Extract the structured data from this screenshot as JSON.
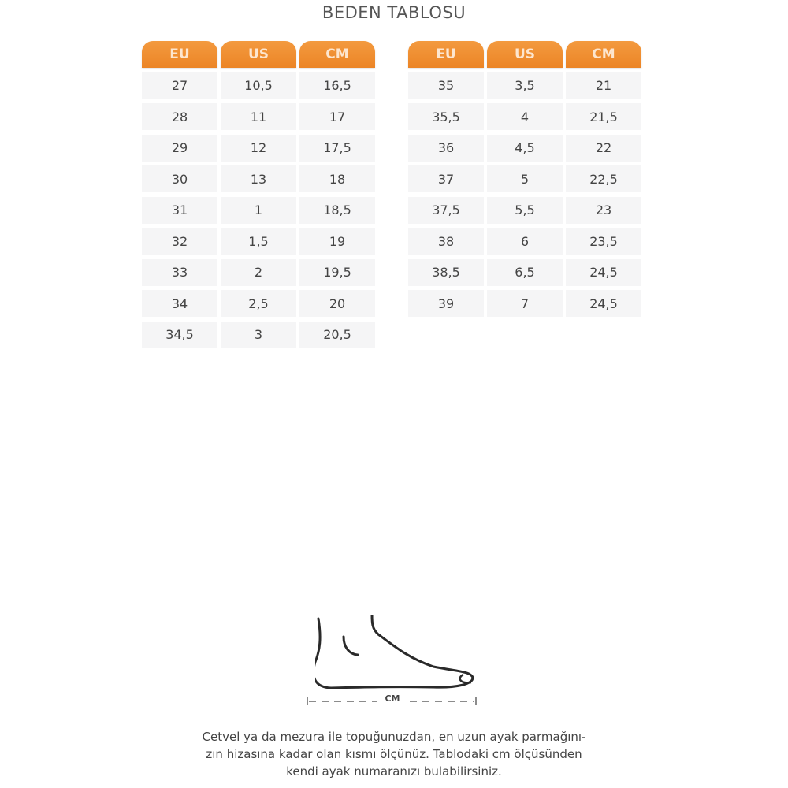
{
  "title": "BEDEN TABLOSU",
  "headers": [
    "EU",
    "US",
    "CM"
  ],
  "colors": {
    "header": "#ec8526",
    "cell": "#f5f5f6"
  },
  "left_table": [
    [
      "27",
      "10,5",
      "16,5"
    ],
    [
      "28",
      "11",
      "17"
    ],
    [
      "29",
      "12",
      "17,5"
    ],
    [
      "30",
      "13",
      "18"
    ],
    [
      "31",
      "1",
      "18,5"
    ],
    [
      "32",
      "1,5",
      "19"
    ],
    [
      "33",
      "2",
      "19,5"
    ],
    [
      "34",
      "2,5",
      "20"
    ],
    [
      "34,5",
      "3",
      "20,5"
    ]
  ],
  "right_table": [
    [
      "35",
      "3,5",
      "21"
    ],
    [
      "35,5",
      "4",
      "21,5"
    ],
    [
      "36",
      "4,5",
      "22"
    ],
    [
      "37",
      "5",
      "22,5"
    ],
    [
      "37,5",
      "5,5",
      "23"
    ],
    [
      "38",
      "6",
      "23,5"
    ],
    [
      "38,5",
      "6,5",
      "24,5"
    ],
    [
      "39",
      "7",
      "24,5"
    ]
  ],
  "measure_label": "CM",
  "instructions": [
    "Cetvel ya da mezura ile topuğunuzdan, en uzun ayak parmağını-",
    "zın hizasına kadar olan kısmı ölçünüz. Tablodaki cm ölçüsünden",
    "kendi ayak numaranızı bulabilirsiniz."
  ]
}
